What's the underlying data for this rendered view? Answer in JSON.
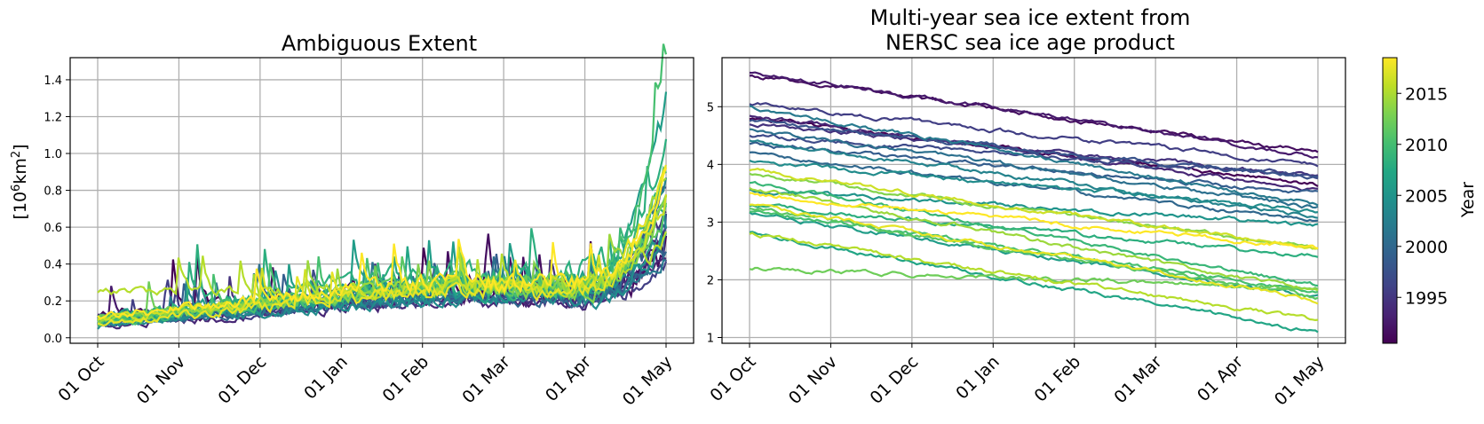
{
  "chart_data": [
    {
      "type": "line",
      "title": "Ambiguous Extent",
      "ylabel_base": "[10",
      "ylabel_sup1": "6",
      "ylabel_mid": "km",
      "ylabel_sup2": "2",
      "ylabel_end": "]",
      "xlabel": "",
      "x_ticks": [
        "01 Oct",
        "01 Nov",
        "01 Dec",
        "01 Jan",
        "01 Feb",
        "01 Mar",
        "01 Apr",
        "01 May"
      ],
      "y_ticks": [
        "0.0",
        "0.2",
        "0.4",
        "0.6",
        "0.8",
        "1.0",
        "1.2",
        "1.4"
      ],
      "ylim": [
        -0.03,
        1.52
      ],
      "grid": true,
      "series_profiles": [
        {
          "year": 1991,
          "start": 0.12,
          "mid": 0.28,
          "end": 0.55,
          "noise": 0.12
        },
        {
          "year": 1992,
          "start": 0.08,
          "mid": 0.25,
          "end": 0.45,
          "noise": 0.1
        },
        {
          "year": 1993,
          "start": 0.1,
          "mid": 0.22,
          "end": 0.6,
          "noise": 0.08
        },
        {
          "year": 1994,
          "start": 0.06,
          "mid": 0.2,
          "end": 0.5,
          "noise": 0.07
        },
        {
          "year": 1995,
          "start": 0.09,
          "mid": 0.24,
          "end": 0.7,
          "noise": 0.09
        },
        {
          "year": 1996,
          "start": 0.07,
          "mid": 0.21,
          "end": 0.4,
          "noise": 0.06
        },
        {
          "year": 1997,
          "start": 0.11,
          "mid": 0.26,
          "end": 0.85,
          "noise": 0.08
        },
        {
          "year": 1998,
          "start": 0.08,
          "mid": 0.23,
          "end": 0.55,
          "noise": 0.07
        },
        {
          "year": 1999,
          "start": 0.1,
          "mid": 0.25,
          "end": 0.65,
          "noise": 0.08
        },
        {
          "year": 2000,
          "start": 0.07,
          "mid": 0.22,
          "end": 0.5,
          "noise": 0.07
        },
        {
          "year": 2001,
          "start": 0.09,
          "mid": 0.24,
          "end": 0.75,
          "noise": 0.08
        },
        {
          "year": 2002,
          "start": 0.08,
          "mid": 0.22,
          "end": 0.45,
          "noise": 0.06
        },
        {
          "year": 2003,
          "start": 0.1,
          "mid": 0.26,
          "end": 0.9,
          "noise": 0.09
        },
        {
          "year": 2004,
          "start": 0.06,
          "mid": 0.21,
          "end": 0.55,
          "noise": 0.07
        },
        {
          "year": 2005,
          "start": 0.09,
          "mid": 0.24,
          "end": 0.6,
          "noise": 0.08
        },
        {
          "year": 2006,
          "start": 0.12,
          "mid": 0.3,
          "end": 1.35,
          "noise": 0.1
        },
        {
          "year": 2007,
          "start": 0.1,
          "mid": 0.27,
          "end": 0.8,
          "noise": 0.09
        },
        {
          "year": 2008,
          "start": 0.11,
          "mid": 0.35,
          "end": 1.1,
          "noise": 0.12
        },
        {
          "year": 2009,
          "start": 0.09,
          "mid": 0.28,
          "end": 0.95,
          "noise": 0.09
        },
        {
          "year": 2010,
          "start": 0.08,
          "mid": 0.3,
          "end": 1.45,
          "noise": 0.1
        },
        {
          "year": 2011,
          "start": 0.1,
          "mid": 0.29,
          "end": 0.7,
          "noise": 0.09
        },
        {
          "year": 2012,
          "start": 0.12,
          "mid": 0.27,
          "end": 0.85,
          "noise": 0.08
        },
        {
          "year": 2013,
          "start": 0.09,
          "mid": 0.26,
          "end": 0.75,
          "noise": 0.08
        },
        {
          "year": 2014,
          "start": 0.11,
          "mid": 0.28,
          "end": 0.95,
          "noise": 0.08
        },
        {
          "year": 2015,
          "start": 0.25,
          "mid": 0.27,
          "end": 0.6,
          "noise": 0.08
        },
        {
          "year": 2016,
          "start": 0.1,
          "mid": 0.29,
          "end": 0.8,
          "noise": 0.08
        },
        {
          "year": 2017,
          "start": 0.08,
          "mid": 0.26,
          "end": 1.0,
          "noise": 0.08
        },
        {
          "year": 2018,
          "start": 0.12,
          "mid": 0.3,
          "end": 0.9,
          "noise": 0.09
        }
      ]
    },
    {
      "type": "line",
      "title_line1": "Multi-year sea ice extent from",
      "title_line2": "NERSC sea ice age product",
      "xlabel": "",
      "ylabel": "",
      "x_ticks": [
        "01 Oct",
        "01 Nov",
        "01 Dec",
        "01 Jan",
        "01 Feb",
        "01 Mar",
        "01 Apr",
        "01 May"
      ],
      "y_ticks": [
        "1",
        "2",
        "3",
        "4",
        "5"
      ],
      "ylim": [
        0.9,
        5.85
      ],
      "grid": true,
      "series_profiles": [
        {
          "year": 1991,
          "start": 4.8,
          "end": 3.65
        },
        {
          "year": 1992,
          "start": 5.55,
          "end": 4.2
        },
        {
          "year": 1993,
          "start": 5.6,
          "end": 4.15
        },
        {
          "year": 1994,
          "start": 4.85,
          "end": 3.55
        },
        {
          "year": 1995,
          "start": 4.7,
          "end": 3.8
        },
        {
          "year": 1996,
          "start": 5.05,
          "end": 4.0
        },
        {
          "year": 1997,
          "start": 4.5,
          "end": 3.8
        },
        {
          "year": 1998,
          "start": 4.75,
          "end": 3.75
        },
        {
          "year": 1999,
          "start": 4.35,
          "end": 3.5
        },
        {
          "year": 2000,
          "start": 4.2,
          "end": 3.0
        },
        {
          "year": 2001,
          "start": 4.6,
          "end": 3.25
        },
        {
          "year": 2002,
          "start": 5.0,
          "end": 3.3
        },
        {
          "year": 2003,
          "start": 4.4,
          "end": 3.1
        },
        {
          "year": 2004,
          "start": 4.05,
          "end": 3.2
        },
        {
          "year": 2005,
          "start": 3.55,
          "end": 2.95
        },
        {
          "year": 2006,
          "start": 3.15,
          "end": 1.7
        },
        {
          "year": 2007,
          "start": 2.8,
          "end": 1.1
        },
        {
          "year": 2008,
          "start": 3.3,
          "end": 2.4
        },
        {
          "year": 2009,
          "start": 3.7,
          "end": 1.9
        },
        {
          "year": 2010,
          "start": 3.2,
          "end": 1.8
        },
        {
          "year": 2011,
          "start": 3.25,
          "end": 1.7
        },
        {
          "year": 2012,
          "start": 2.2,
          "end": 1.85
        },
        {
          "year": 2013,
          "start": 3.85,
          "end": 2.55
        },
        {
          "year": 2014,
          "start": 3.6,
          "end": 1.8
        },
        {
          "year": 2015,
          "start": 2.8,
          "end": 1.3
        },
        {
          "year": 2016,
          "start": 3.9,
          "end": 2.55
        },
        {
          "year": 2017,
          "start": 3.3,
          "end": 1.65
        },
        {
          "year": 2018,
          "start": 3.5,
          "end": 2.55
        }
      ]
    }
  ],
  "colorbar": {
    "label": "Year",
    "ticks": [
      "1995",
      "2000",
      "2005",
      "2010",
      "2015"
    ],
    "tick_values": [
      1995,
      2000,
      2005,
      2010,
      2015
    ],
    "range": [
      1991,
      2018
    ],
    "colormap": "viridis"
  }
}
